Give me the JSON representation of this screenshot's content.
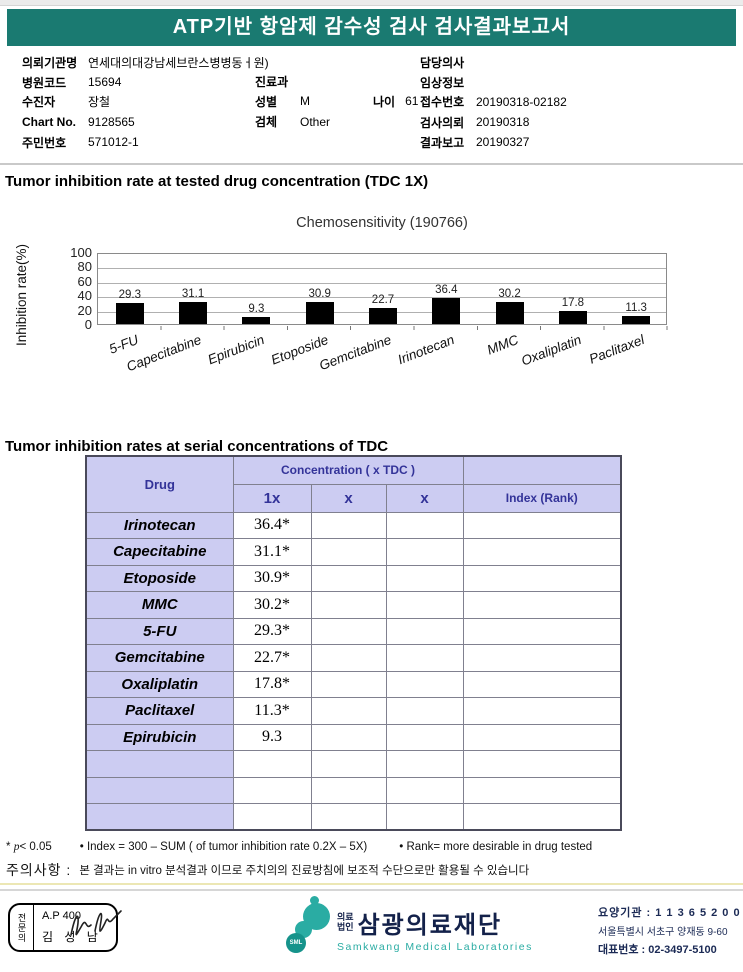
{
  "header": {
    "title": "ATP기반 항암제 감수성 검사 검사결과보고서"
  },
  "patient_info": {
    "left": [
      {
        "label": "의뢰기관명",
        "value": "연세대의대강남세브란스병병동ㅓ원)"
      },
      {
        "label": "병원코드",
        "value": "15694"
      },
      {
        "label": "수진자",
        "value": "장철"
      },
      {
        "label": "Chart No.",
        "value": "9128565"
      },
      {
        "label": "주민번호",
        "value": "571012-1"
      }
    ],
    "middle": [
      {
        "label": "진료과",
        "value": ""
      },
      {
        "label": "성별",
        "value": "M",
        "label2": "나이",
        "value2": "61"
      },
      {
        "label": "검체",
        "value": "Other"
      }
    ],
    "right": [
      {
        "label": "담당의사",
        "value": ""
      },
      {
        "label": "임상정보",
        "value": ""
      },
      {
        "label": "접수번호",
        "value": "20190318-02182"
      },
      {
        "label": "검사의뢰",
        "value": "20190318"
      },
      {
        "label": "결과보고",
        "value": "20190327"
      }
    ]
  },
  "section1_title": "Tumor inhibition rate at tested drug concentration (TDC 1X)",
  "chart_data": {
    "type": "bar",
    "title": "Chemosensitivity (190766)",
    "ylabel": "Inhibition rate(%)",
    "xlabel": "",
    "categories": [
      "5-FU",
      "Capecitabine",
      "Epirubicin",
      "Etoposide",
      "Gemcitabine",
      "Irinotecan",
      "MMC",
      "Oxaliplatin",
      "Paclitaxel"
    ],
    "values": [
      29.3,
      31.1,
      9.3,
      30.9,
      22.7,
      36.4,
      30.2,
      17.8,
      11.3
    ],
    "ylim": [
      0,
      100
    ],
    "yticks": [
      0,
      20,
      40,
      60,
      80,
      100
    ],
    "grid": true,
    "legend": false,
    "bar_color": "#000000"
  },
  "section2_title": "Tumor inhibition rates at serial concentrations of TDC",
  "table": {
    "header": {
      "drug": "Drug",
      "concentration": "Concentration ( x TDC )",
      "sub1": "1x",
      "sub2": "x",
      "sub3": "x",
      "index": "Index (Rank)"
    },
    "rows": [
      {
        "drug": "Irinotecan",
        "c1": "36.4*",
        "c2": "",
        "c3": "",
        "index": ""
      },
      {
        "drug": "Capecitabine",
        "c1": "31.1*",
        "c2": "",
        "c3": "",
        "index": ""
      },
      {
        "drug": "Etoposide",
        "c1": "30.9*",
        "c2": "",
        "c3": "",
        "index": ""
      },
      {
        "drug": "MMC",
        "c1": "30.2*",
        "c2": "",
        "c3": "",
        "index": ""
      },
      {
        "drug": "5-FU",
        "c1": "29.3*",
        "c2": "",
        "c3": "",
        "index": ""
      },
      {
        "drug": "Gemcitabine",
        "c1": "22.7*",
        "c2": "",
        "c3": "",
        "index": ""
      },
      {
        "drug": "Oxaliplatin",
        "c1": "17.8*",
        "c2": "",
        "c3": "",
        "index": ""
      },
      {
        "drug": "Paclitaxel",
        "c1": "11.3*",
        "c2": "",
        "c3": "",
        "index": ""
      },
      {
        "drug": "Epirubicin",
        "c1": "9.3",
        "c2": "",
        "c3": "",
        "index": ""
      },
      {
        "drug": "",
        "c1": "",
        "c2": "",
        "c3": "",
        "index": ""
      },
      {
        "drug": "",
        "c1": "",
        "c2": "",
        "c3": "",
        "index": ""
      },
      {
        "drug": "",
        "c1": "",
        "c2": "",
        "c3": "",
        "index": ""
      }
    ]
  },
  "footnotes": {
    "sig_star": "*",
    "sig_p": "p",
    "sig_rest": "< 0.05",
    "index_note": "• Index = 300 – SUM ( of tumor inhibition rate 0.2X  –  5X)",
    "rank_note": "• Rank= more desirable in drug tested",
    "caution_label": "주의사항 :",
    "caution_text": "본 결과는 in vitro 분석결과 이므로 주치의의 진료방침에 보조적 수단으로만 활용될 수 있습니다"
  },
  "footer": {
    "stamp": {
      "side_label": "전문의",
      "line1": "A.P 400",
      "line2": "김 성 남"
    },
    "logo": {
      "sml": "SML",
      "prefix1": "의료",
      "prefix2": "법인",
      "name": "삼광의료재단",
      "name_en": "Samkwang Medical Laboratories"
    },
    "info": {
      "line1": "요양기관 : 1 1 3 6 5 2 0 0",
      "line2": "서울특별시 서초구 양재동 9-60",
      "line3": "대표번호 : 02-3497-5100"
    }
  },
  "colors": {
    "banner_teal": "#1a7a71",
    "table_header_bg": "#ccccf2",
    "table_header_text": "#333399",
    "logo_teal": "#2aaca3",
    "bar": "#000000"
  }
}
